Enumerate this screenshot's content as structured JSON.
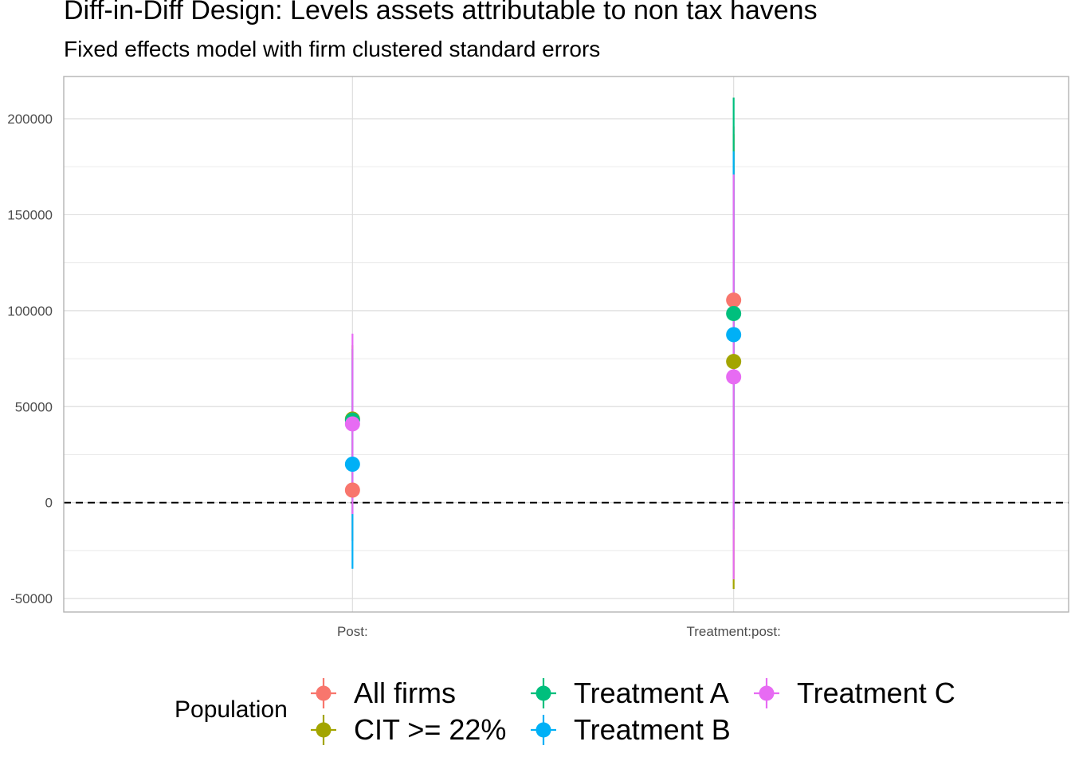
{
  "chart_data": {
    "type": "scatter",
    "title": "Diff-in-Diff Design: Levels assets attributable to non tax havens",
    "subtitle": "Fixed effects model with firm clustered standard errors",
    "xlabel": "",
    "ylabel": "",
    "categories": [
      "Post:",
      "Treatment:post:"
    ],
    "ylim": [
      -57000,
      222000
    ],
    "yticks": [
      -50000,
      0,
      50000,
      100000,
      150000,
      200000
    ],
    "ytick_labels": [
      "-50000",
      "0",
      "50000",
      "100000",
      "150000",
      "200000"
    ],
    "reference_line": {
      "y": 0,
      "style": "dashed",
      "color": "#000000"
    },
    "grid": true,
    "legend": {
      "title": "Population",
      "position": "bottom"
    },
    "series": [
      {
        "name": "All firms",
        "color": "#F8766D",
        "points": [
          {
            "category": "Post:",
            "estimate": 6500,
            "ci_low": -20000,
            "ci_high": 33000
          },
          {
            "category": "Treatment:post:",
            "estimate": 105500,
            "ci_low": 10000,
            "ci_high": 196000
          }
        ]
      },
      {
        "name": "CIT >= 22%",
        "color": "#A3A500",
        "points": [
          {
            "category": "Post:",
            "estimate": 43500,
            "ci_low": 5000,
            "ci_high": 82000
          },
          {
            "category": "Treatment:post:",
            "estimate": 73500,
            "ci_low": -45000,
            "ci_high": 192000
          }
        ]
      },
      {
        "name": "Treatment A",
        "color": "#00BF7D",
        "points": [
          {
            "category": "Post:",
            "estimate": 43000,
            "ci_low": 2000,
            "ci_high": 80000
          },
          {
            "category": "Treatment:post:",
            "estimate": 98500,
            "ci_low": -14000,
            "ci_high": 211000
          }
        ]
      },
      {
        "name": "Treatment B",
        "color": "#00B0F6",
        "points": [
          {
            "category": "Post:",
            "estimate": 20000,
            "ci_low": -34500,
            "ci_high": 74000
          },
          {
            "category": "Treatment:post:",
            "estimate": 87500,
            "ci_low": -8000,
            "ci_high": 183000
          }
        ]
      },
      {
        "name": "Treatment C",
        "color": "#E76BF3",
        "points": [
          {
            "category": "Post:",
            "estimate": 41000,
            "ci_low": -6000,
            "ci_high": 88000
          },
          {
            "category": "Treatment:post:",
            "estimate": 65500,
            "ci_low": -40000,
            "ci_high": 171000
          }
        ]
      }
    ]
  }
}
